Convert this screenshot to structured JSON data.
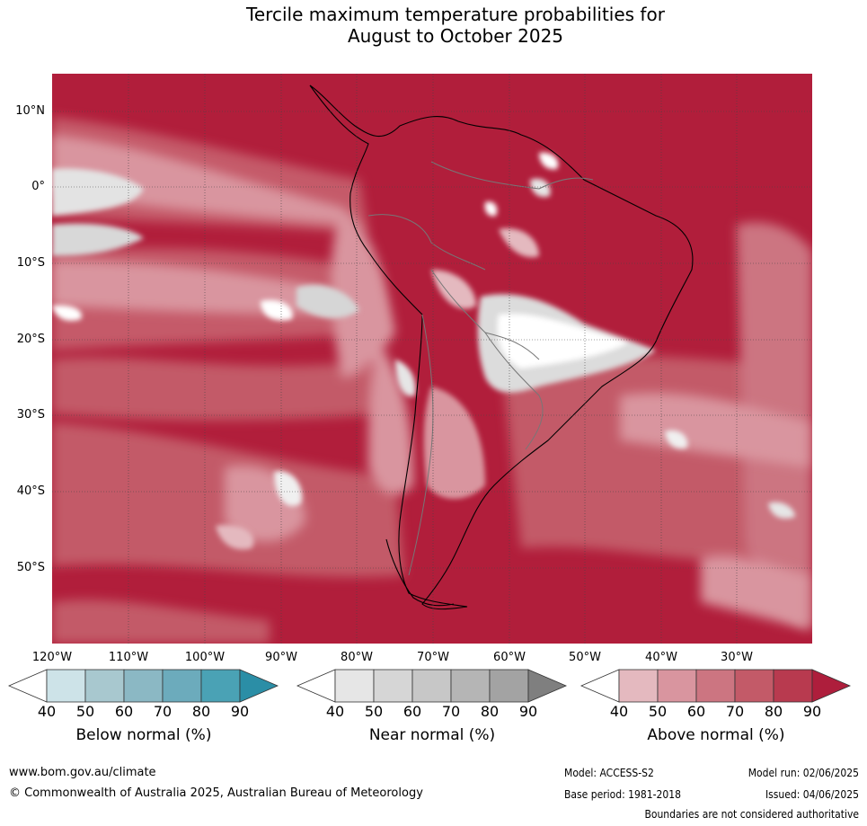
{
  "title": {
    "line1": "Tercile maximum temperature probabilities for",
    "line2": "August to October 2025"
  },
  "axes": {
    "lat_ticks": [
      "10°N",
      "0°",
      "10°S",
      "20°S",
      "30°S",
      "40°S",
      "50°S"
    ],
    "lon_ticks": [
      "120°W",
      "110°W",
      "100°W",
      "90°W",
      "80°W",
      "70°W",
      "60°W",
      "50°W",
      "40°W",
      "30°W"
    ]
  },
  "colorbars": [
    {
      "label": "Below normal (%)",
      "ticks": [
        "40",
        "50",
        "60",
        "70",
        "80",
        "90"
      ],
      "colors": [
        "#ffffff",
        "#cde3e8",
        "#a8c8cf",
        "#8bb8c4",
        "#6cabbc",
        "#4aa2b5",
        "#2b8ea6"
      ]
    },
    {
      "label": "Near normal (%)",
      "ticks": [
        "40",
        "50",
        "60",
        "70",
        "80",
        "90"
      ],
      "colors": [
        "#ffffff",
        "#e6e6e6",
        "#d6d6d6",
        "#c7c7c7",
        "#b5b5b5",
        "#a3a3a3",
        "#7f7f7f"
      ]
    },
    {
      "label": "Above normal (%)",
      "ticks": [
        "40",
        "50",
        "60",
        "70",
        "80",
        "90"
      ],
      "colors": [
        "#ffffff",
        "#e4b9bf",
        "#d9959f",
        "#cc7581",
        "#c35a68",
        "#b83a4f",
        "#ae1e3c"
      ]
    }
  ],
  "footer": {
    "website": "www.bom.gov.au/climate",
    "copyright": "© Commonwealth of Australia 2025, Australian Bureau of Meteorology",
    "model": "Model: ACCESS-S2",
    "model_run": "Model run: 02/06/2025",
    "base_period": "Base period: 1981-2018",
    "issued": "Issued: 04/06/2025",
    "disclaimer": "Boundaries are not considered authoritative"
  }
}
